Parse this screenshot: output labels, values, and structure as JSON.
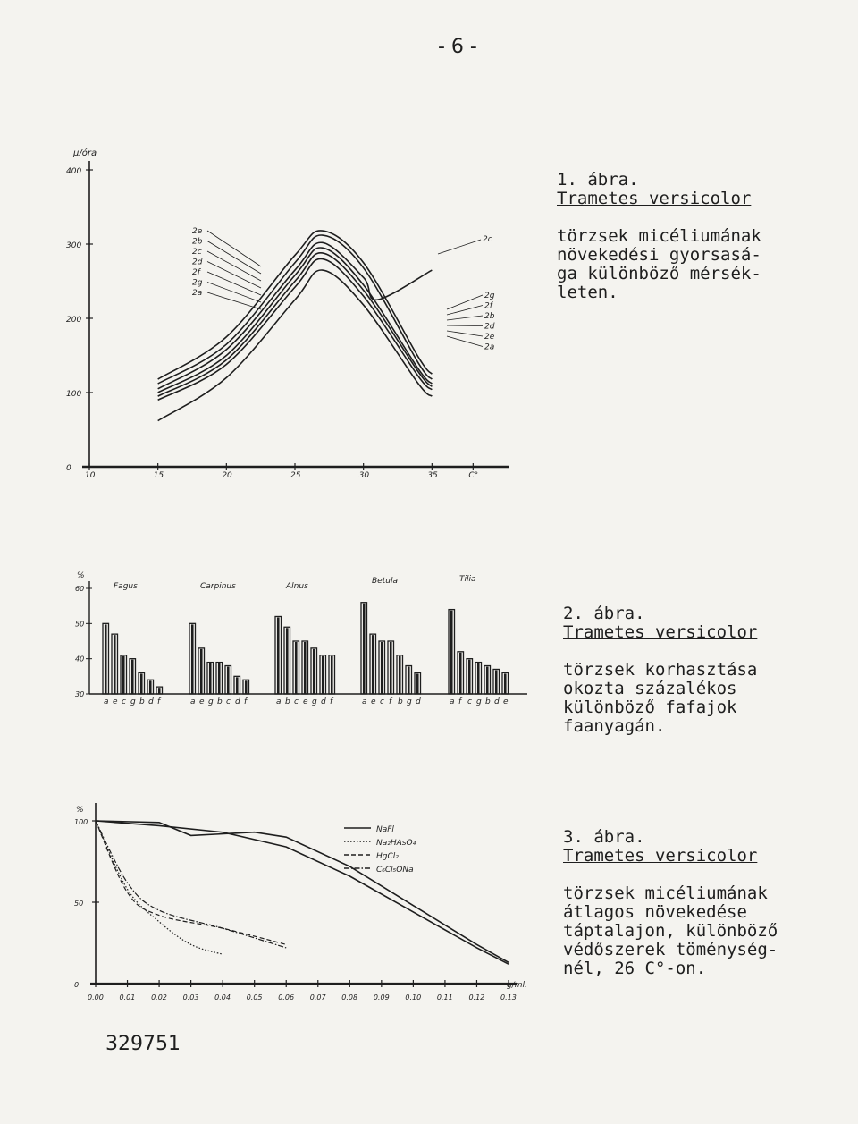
{
  "page_number": "- 6 -",
  "archive_number": "329751",
  "figures": [
    {
      "caption_number": "1. ábra.",
      "caption_title": "Trametes versicolor",
      "caption_text": "törzsek micéliumának\nnövekedési gyorsasá-\nga különböző mérsék-\nleten."
    },
    {
      "caption_number": "2. ábra.",
      "caption_title": "Trametes versicolor",
      "caption_text": "törzsek korhasztása\nokozta százalékos\nkülönböző fafajok\nfaanyagán."
    },
    {
      "caption_number": "3. ábra.",
      "caption_title": "Trametes versicolor",
      "caption_text": "törzsek micéliumának\nátlagos növekedése\ntáptalajon, különböző\nvédőszerek töménység-\nnél, 26 C°-on."
    }
  ],
  "chart_data": [
    {
      "type": "line",
      "ylabel": "µ/óra",
      "xlabel": "C°",
      "ylim": [
        0,
        400
      ],
      "xlim": [
        10,
        40
      ],
      "xticks": [
        "10",
        "15",
        "20",
        "25",
        "30",
        "35",
        "C°"
      ],
      "yticks": [
        "0",
        "100",
        "200",
        "300",
        "400"
      ],
      "left_labels": [
        "2e",
        "2b",
        "2c",
        "2d",
        "2f",
        "2g",
        "2a"
      ],
      "right_labels": [
        "2c",
        "2g",
        "2f",
        "2b",
        "2d",
        "2e",
        "2a"
      ],
      "series": [
        {
          "name": "2e",
          "x": [
            15,
            20,
            25,
            27,
            30,
            34,
            35
          ],
          "y": [
            118,
            175,
            285,
            318,
            275,
            148,
            125
          ]
        },
        {
          "name": "2b",
          "x": [
            15,
            20,
            25,
            27,
            30,
            34,
            35
          ],
          "y": [
            112,
            165,
            275,
            312,
            268,
            140,
            118
          ]
        },
        {
          "name": "2c",
          "x": [
            15,
            20,
            25,
            27,
            30,
            31,
            35
          ],
          "y": [
            105,
            158,
            265,
            302,
            255,
            225,
            265
          ]
        },
        {
          "name": "2d",
          "x": [
            15,
            20,
            25,
            27,
            30,
            34,
            35
          ],
          "y": [
            100,
            150,
            258,
            295,
            245,
            132,
            112
          ]
        },
        {
          "name": "2f",
          "x": [
            15,
            20,
            25,
            27,
            30,
            34,
            35
          ],
          "y": [
            95,
            144,
            250,
            288,
            238,
            128,
            108
          ]
        },
        {
          "name": "2g",
          "x": [
            15,
            20,
            25,
            27,
            30,
            34,
            35
          ],
          "y": [
            90,
            138,
            242,
            280,
            230,
            122,
            104
          ]
        },
        {
          "name": "2a",
          "x": [
            15,
            20,
            25,
            27,
            30,
            34,
            35
          ],
          "y": [
            62,
            120,
            225,
            265,
            218,
            112,
            95
          ]
        }
      ]
    },
    {
      "type": "bar",
      "ylabel": "%",
      "ylim": [
        30,
        60
      ],
      "yticks": [
        "30",
        "40",
        "50",
        "60"
      ],
      "groups": [
        {
          "name": "Fagus",
          "categories": [
            "a",
            "e",
            "c",
            "g",
            "b",
            "d",
            "f"
          ],
          "values": [
            50,
            47,
            41,
            40,
            36,
            34,
            32
          ]
        },
        {
          "name": "Carpinus",
          "categories": [
            "a",
            "e",
            "g",
            "b",
            "c",
            "d",
            "f"
          ],
          "values": [
            50,
            43,
            39,
            39,
            38,
            35,
            34
          ]
        },
        {
          "name": "Alnus",
          "categories": [
            "a",
            "b",
            "c",
            "e",
            "g",
            "d",
            "f"
          ],
          "values": [
            52,
            49,
            45,
            45,
            43,
            41,
            41
          ]
        },
        {
          "name": "Betula",
          "categories": [
            "a",
            "e",
            "c",
            "f",
            "b",
            "g",
            "d"
          ],
          "values": [
            56,
            47,
            45,
            45,
            41,
            38,
            36
          ]
        },
        {
          "name": "Tilia",
          "categories": [
            "a",
            "f",
            "c",
            "g",
            "b",
            "d",
            "e"
          ],
          "values": [
            54,
            42,
            40,
            39,
            38,
            37,
            36
          ]
        }
      ]
    },
    {
      "type": "line",
      "ylabel": "%",
      "xlabel": "g/ml.",
      "ylim": [
        0,
        100
      ],
      "xlim": [
        0,
        0.13
      ],
      "xticks": [
        "0.00",
        "0.01",
        "0.02",
        "0.03",
        "0.04",
        "0.05",
        "0.06",
        "0.07",
        "0.08",
        "0.09",
        "0.10",
        "0.11",
        "0.12",
        "0.13"
      ],
      "yticks": [
        "0",
        "50",
        "100"
      ],
      "legend": [
        {
          "name": "NaFl",
          "style": "solid"
        },
        {
          "name": "Na₂HAsO₄",
          "style": "dotted"
        },
        {
          "name": "HgCl₂",
          "style": "dashed"
        },
        {
          "name": "C₆Cl₅ONa",
          "style": "dashdot"
        }
      ],
      "series": [
        {
          "name": "NaFl",
          "x": [
            0.0,
            0.02,
            0.04,
            0.06,
            0.08,
            0.1,
            0.12,
            0.13
          ],
          "y": [
            100,
            97,
            93,
            84,
            66,
            44,
            22,
            12
          ]
        },
        {
          "name": "NaFl",
          "x": [
            0.0,
            0.02,
            0.03,
            0.05,
            0.06,
            0.08,
            0.1,
            0.12,
            0.13
          ],
          "y": [
            100,
            99,
            91,
            93,
            90,
            72,
            48,
            24,
            13
          ]
        },
        {
          "name": "Na₂HAsO₄",
          "x": [
            0.0,
            0.01,
            0.02,
            0.03,
            0.04
          ],
          "y": [
            100,
            58,
            38,
            24,
            18
          ]
        },
        {
          "name": "HgCl₂",
          "x": [
            0.0,
            0.01,
            0.02,
            0.04,
            0.06
          ],
          "y": [
            100,
            56,
            42,
            34,
            24
          ]
        },
        {
          "name": "C₆Cl₅ONa",
          "x": [
            0.0,
            0.01,
            0.02,
            0.04,
            0.06
          ],
          "y": [
            100,
            62,
            45,
            34,
            22
          ]
        }
      ]
    }
  ],
  "colors": {
    "paper": "#f4f3ef",
    "ink": "#1e1e1e"
  }
}
